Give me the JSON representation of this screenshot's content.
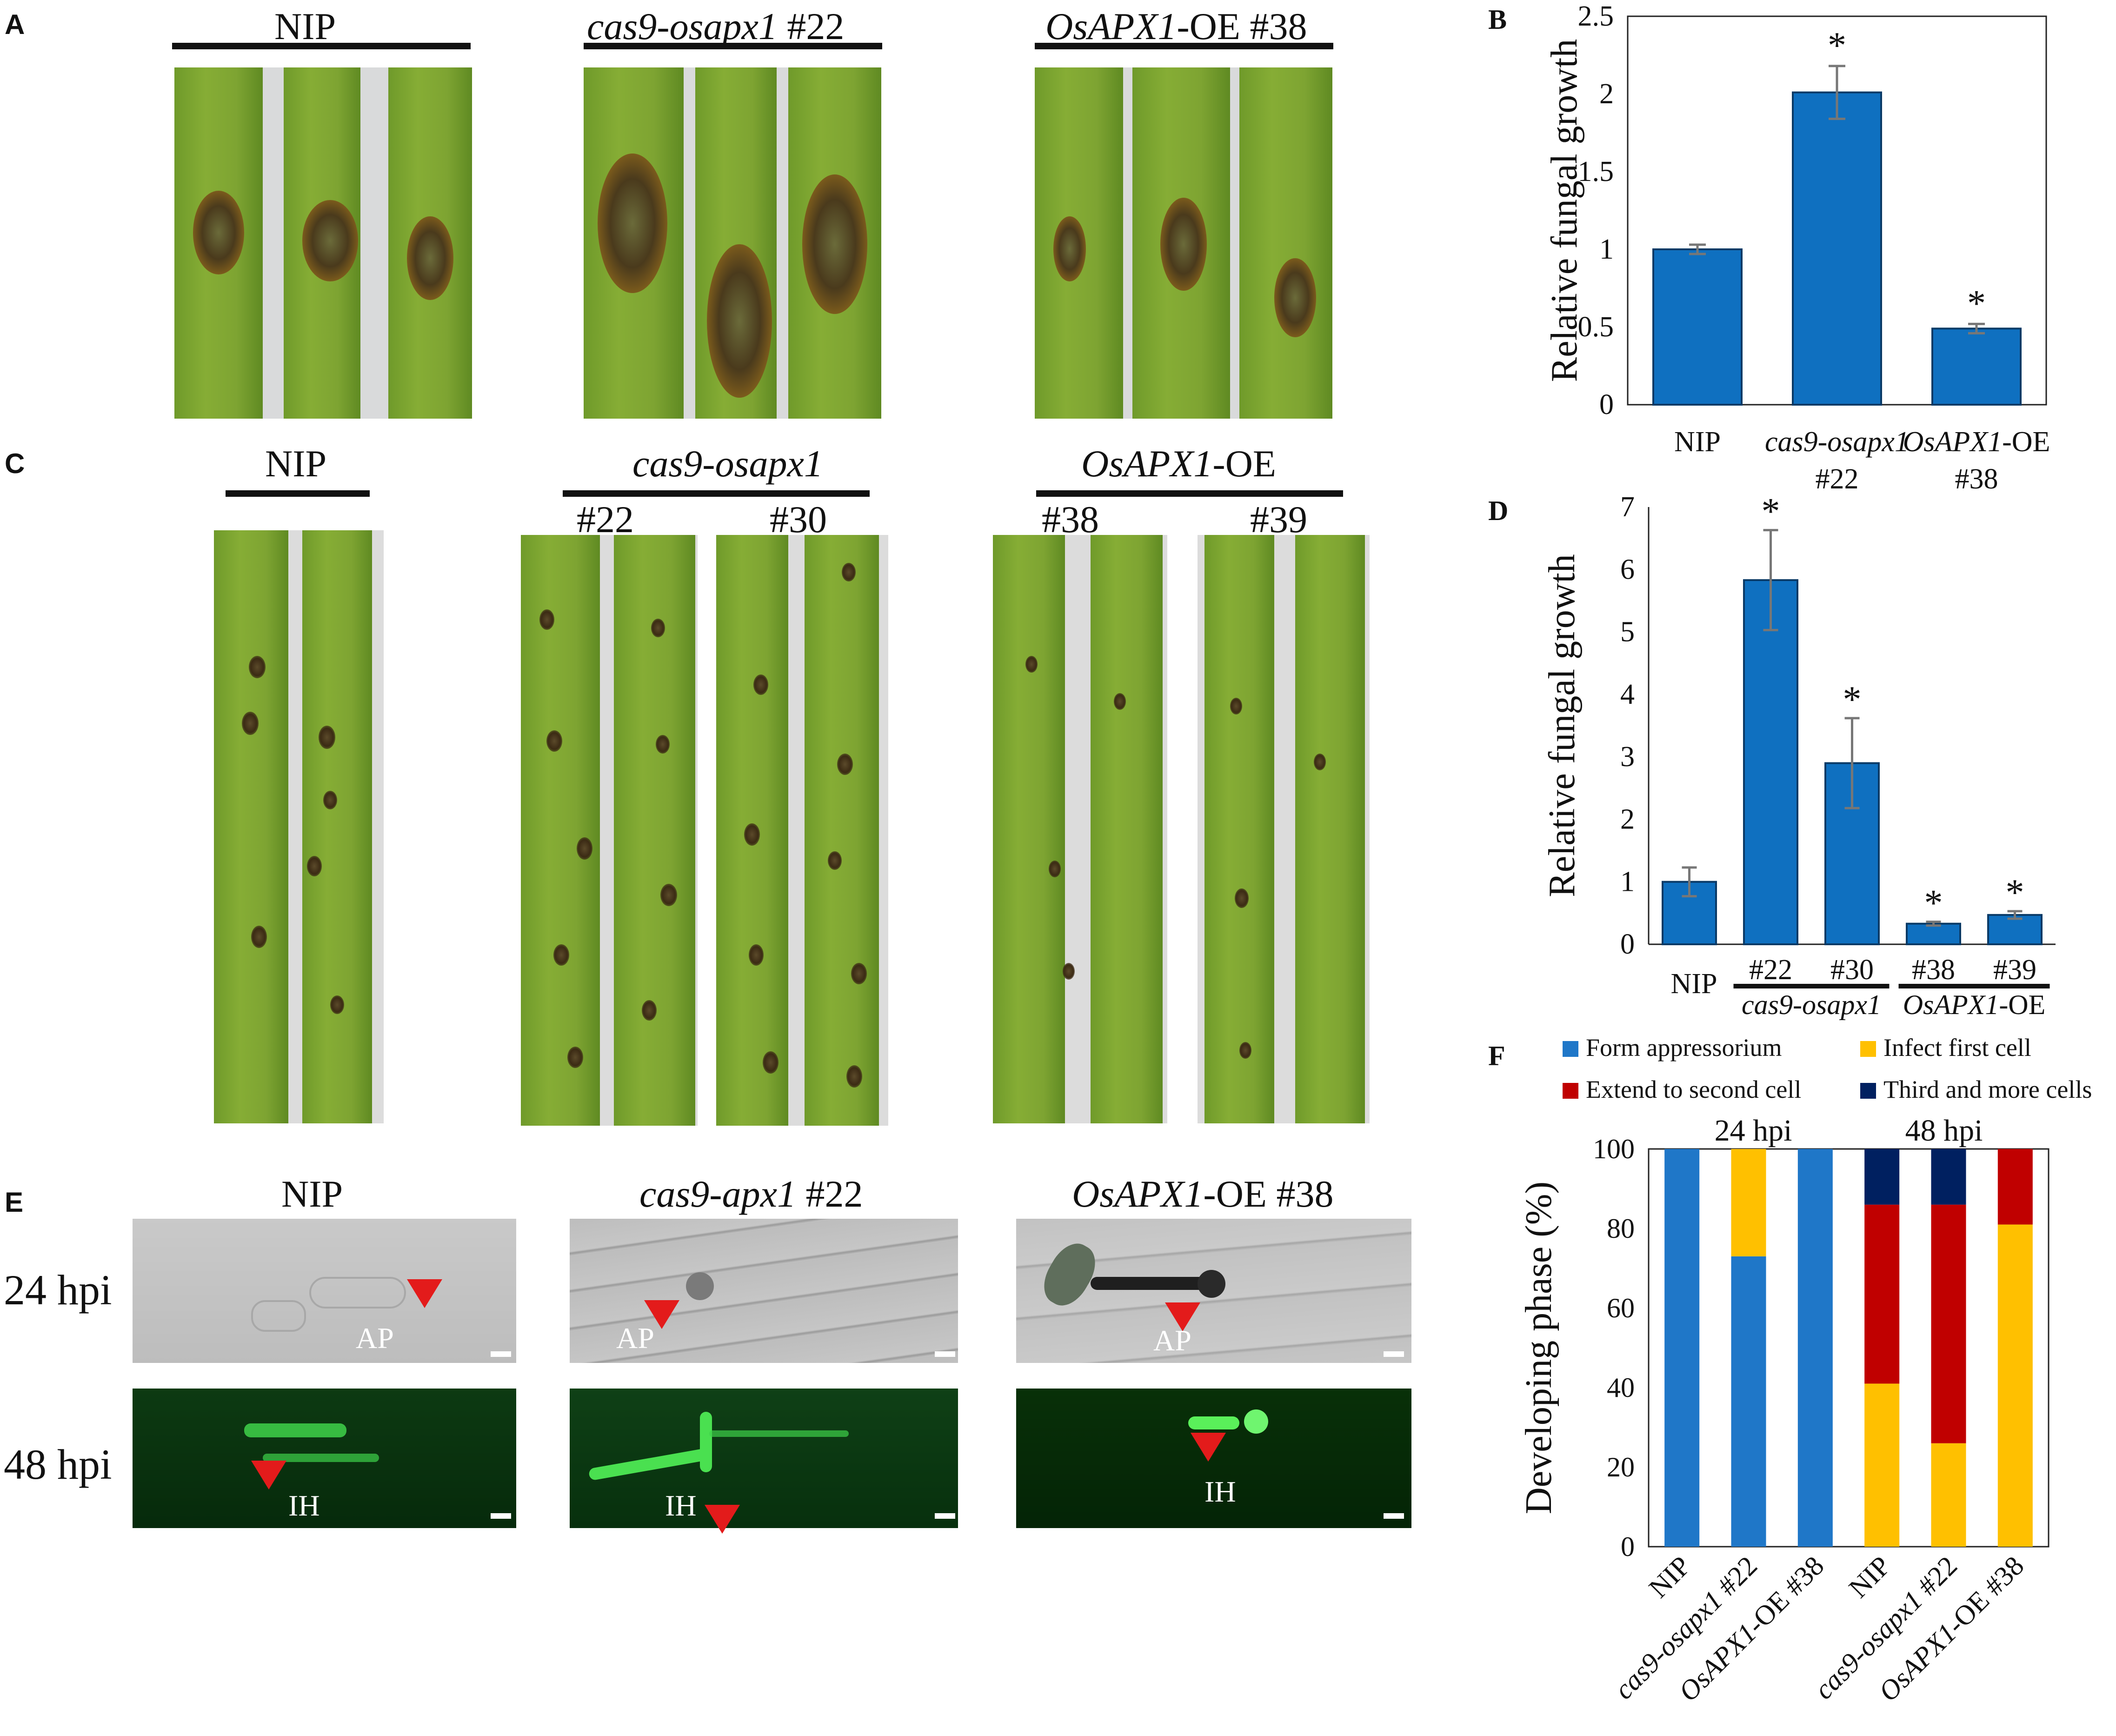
{
  "panels": {
    "A": {
      "letter": "A",
      "groups": [
        {
          "name": "NIP",
          "italic": "",
          "plain": "NIP"
        },
        {
          "name": "cas9-osapx1 #22",
          "italic": "cas9-osapx1",
          "plain": " #22"
        },
        {
          "name": "OsAPX1-OE #38",
          "italic": "OsAPX1",
          "plain": "-OE #38"
        }
      ]
    },
    "C": {
      "letter": "C",
      "nip": "NIP",
      "cas9": "cas9-osapx1",
      "oe_italic": "OsAPX1",
      "oe_plain": "-OE",
      "lines": [
        "#22",
        "#30",
        "#38",
        "#39"
      ]
    },
    "E": {
      "letter": "E",
      "cols": [
        {
          "italic": "",
          "plain": "NIP"
        },
        {
          "italic": "cas9-apx1",
          "plain": " #22"
        },
        {
          "italic": "OsAPX1",
          "plain": "-OE #38"
        }
      ],
      "rows": [
        "24 hpi",
        "48 hpi"
      ],
      "ap": "AP",
      "ih": "IH"
    }
  },
  "colors": {
    "bar_blue": "#0f70c0",
    "form_appressorium": "#1f77c8",
    "infect_first_cell": "#ffc000",
    "extend_second_cell": "#c00000",
    "third_more_cells": "#002060",
    "arrow_red": "#e31b1b"
  },
  "chart_data": [
    {
      "panel": "B",
      "type": "bar",
      "ylabel": "Relative fungal growth",
      "ylim": [
        0,
        2.5
      ],
      "yticks": [
        "0",
        "0.5",
        "1",
        "1.5",
        "2",
        "2.5"
      ],
      "categories": [
        {
          "italic": "",
          "plain": "NIP",
          "line2": ""
        },
        {
          "italic": "cas9-osapx1",
          "plain": "",
          "line2": "#22"
        },
        {
          "italic": "OsAPX1",
          "plain": "-OE",
          "line2": "#38"
        }
      ],
      "values": [
        1.0,
        2.01,
        0.49
      ],
      "errors": [
        0.03,
        0.17,
        0.03
      ],
      "significance": [
        "",
        "*",
        "*"
      ]
    },
    {
      "panel": "D",
      "type": "bar",
      "ylabel": "Relative fungal growth",
      "ylim": [
        0,
        7
      ],
      "yticks": [
        "0",
        "1",
        "2",
        "3",
        "4",
        "5",
        "6",
        "7"
      ],
      "categories": [
        "NIP",
        "#22",
        "#30",
        "#38",
        "#39"
      ],
      "group_labels": [
        {
          "italic": "cas9-osapx1",
          "plain": ""
        },
        {
          "italic": "OsAPX1",
          "plain": "-OE"
        }
      ],
      "values": [
        1.0,
        5.83,
        2.9,
        0.33,
        0.47
      ],
      "errors": [
        0.23,
        0.8,
        0.72,
        0.03,
        0.06
      ],
      "significance": [
        "",
        "*",
        "*",
        "*",
        "*"
      ]
    },
    {
      "panel": "F",
      "type": "bar",
      "stacked": true,
      "ylabel": "Developing phase (%)",
      "ylim": [
        0,
        100
      ],
      "yticks": [
        "0",
        "20",
        "40",
        "60",
        "80",
        "100"
      ],
      "time_labels": [
        "24 hpi",
        "48 hpi"
      ],
      "categories": [
        {
          "italic": "",
          "plain": "NIP"
        },
        {
          "italic": "cas9-osapx1",
          "plain": " #22"
        },
        {
          "italic": "OsAPX1",
          "plain": "-OE #38"
        },
        {
          "italic": "",
          "plain": "NIP"
        },
        {
          "italic": "cas9-osapx1",
          "plain": " #22"
        },
        {
          "italic": "OsAPX1",
          "plain": "-OE #38"
        }
      ],
      "series": [
        {
          "name": "Form appressorium",
          "values": [
            100,
            73,
            100,
            0,
            0,
            0
          ]
        },
        {
          "name": "Infect first cell",
          "values": [
            0,
            27,
            0,
            41,
            26,
            81
          ]
        },
        {
          "name": "Extend to second cell",
          "values": [
            0,
            0,
            0,
            45,
            60,
            19
          ]
        },
        {
          "name": "Third and more cells",
          "values": [
            0,
            0,
            0,
            14,
            14,
            0
          ]
        }
      ],
      "legend": "top"
    }
  ]
}
